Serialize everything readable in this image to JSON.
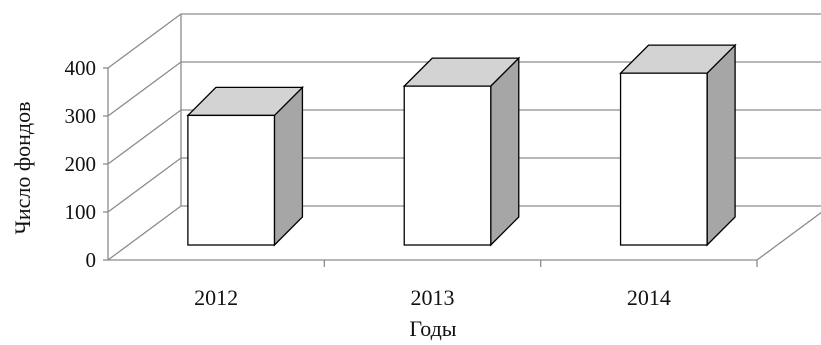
{
  "chart_data": {
    "type": "bar",
    "title": "",
    "xlabel": "Годы",
    "ylabel": "Число фондов",
    "categories": [
      "2012",
      "2013",
      "2014"
    ],
    "values": [
      270,
      331,
      358
    ],
    "ylim": [
      0,
      400
    ],
    "yticks": [
      "0",
      "100",
      "200",
      "300",
      "400"
    ],
    "grid": true,
    "legend": "none",
    "style": "3d"
  },
  "colors": {
    "bar_front": "#ffffff",
    "bar_top": "#d3d3d3",
    "bar_side": "#a6a6a6",
    "outline": "#000000",
    "gridline": "#8c8c8c"
  }
}
